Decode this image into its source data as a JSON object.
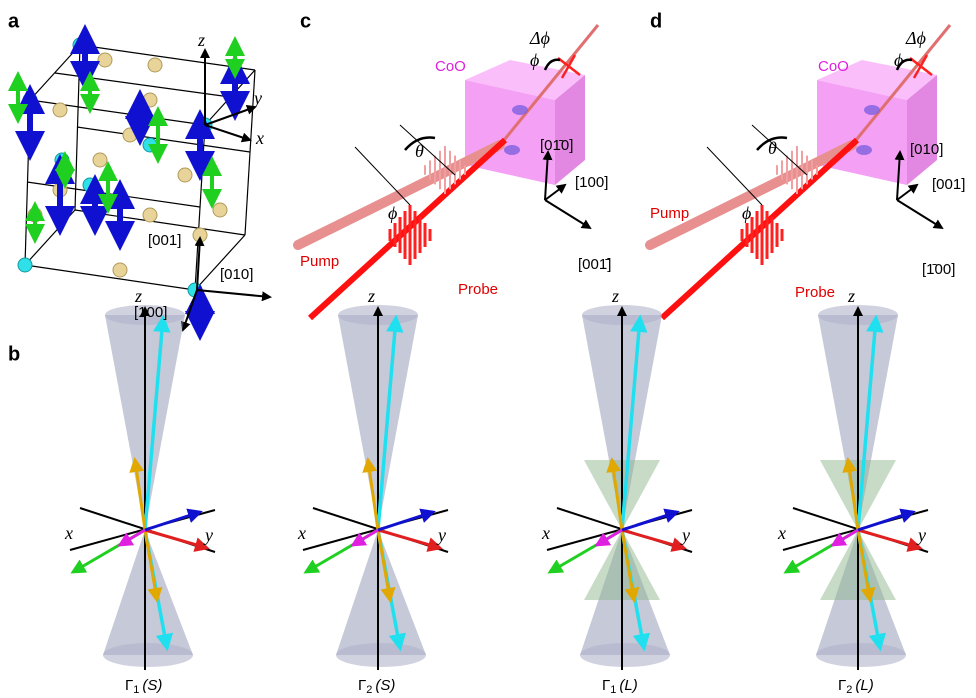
{
  "panel_a": {
    "label": "a",
    "axes": {
      "z": "z",
      "y": "y",
      "x": "x"
    },
    "directions": [
      "[001]",
      "[010]",
      "[100]"
    ]
  },
  "panel_b": {
    "label": "b",
    "subpanels": [
      {
        "axes": {
          "z": "z",
          "x": "x",
          "y": "y"
        },
        "caption": {
          "symbol": "Γ",
          "index": "1",
          "mode": "(S)"
        }
      },
      {
        "axes": {
          "z": "z",
          "x": "x",
          "y": "y"
        },
        "caption": {
          "symbol": "Γ",
          "index": "2",
          "mode": "(S)"
        }
      },
      {
        "axes": {
          "z": "z",
          "x": "x",
          "y": "y"
        },
        "caption": {
          "symbol": "Γ",
          "index": "1",
          "mode": "(L)"
        }
      },
      {
        "axes": {
          "z": "z",
          "x": "x",
          "y": "y"
        },
        "caption": {
          "symbol": "Γ",
          "index": "2",
          "mode": "(L)"
        }
      }
    ]
  },
  "panel_c": {
    "label": "c",
    "sample": "CoO",
    "delta_phi": "Δϕ",
    "phi_out": "ϕ",
    "theta": "θ",
    "phi_in": "ϕ",
    "directions": [
      "[01̄0]",
      "[100]",
      "[001̄]"
    ],
    "pump": "Pump",
    "probe": "Probe"
  },
  "panel_d": {
    "label": "d",
    "sample": "CoO",
    "delta_phi": "Δϕ",
    "phi_out": "ϕ",
    "theta": "θ",
    "phi_in": "ϕ",
    "directions": [
      "[010]",
      "[001]",
      "[1̄00]"
    ],
    "pump": "Pump",
    "probe": "Probe"
  }
}
